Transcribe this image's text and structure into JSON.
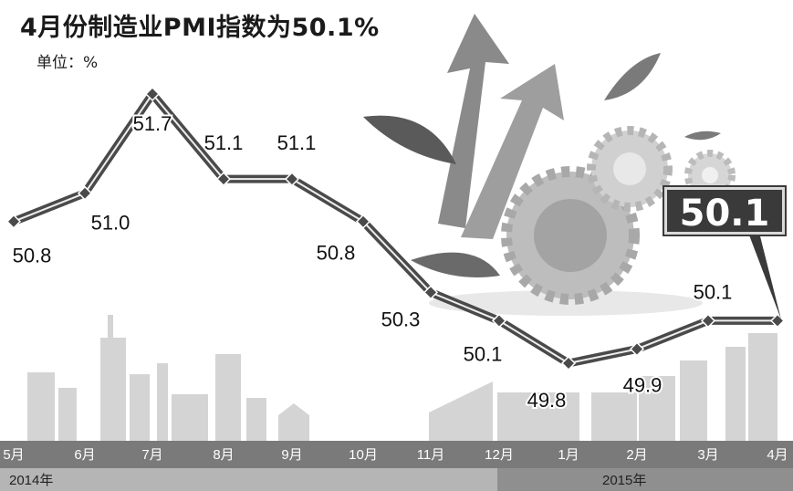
{
  "title": "4月份制造业PMI指数为50.1%",
  "unit_label": "单位：%",
  "callout_value": "50.1",
  "chart_data": {
    "type": "line",
    "title": "4月份制造业PMI指数为50.1%",
    "unit": "%",
    "categories": [
      "5月",
      "6月",
      "7月",
      "8月",
      "9月",
      "10月",
      "11月",
      "12月",
      "1月",
      "2月",
      "3月",
      "4月"
    ],
    "values": [
      50.8,
      51.0,
      51.7,
      51.1,
      51.1,
      50.8,
      50.3,
      50.1,
      49.8,
      49.9,
      50.1,
      50.1
    ],
    "value_labels": [
      "50.8",
      "51.0",
      "51.7",
      "51.1",
      "51.1",
      "50.8",
      "50.3",
      "50.1",
      "49.8",
      "49.9",
      "50.1",
      ""
    ],
    "year_labels": [
      {
        "label": "2014年",
        "start_index": 0,
        "end_index": 7
      },
      {
        "label": "2015年",
        "start_index": 8,
        "end_index": 11
      }
    ],
    "ylim": [
      49.5,
      52.0
    ],
    "grid": false,
    "legend": "none"
  },
  "colors": {
    "line": "#4a4a4a",
    "line_highlight": "#eeeeee",
    "axis_band": "#7a7a7a",
    "year_band_2014": "#b5b5b5",
    "year_band_2015": "#8f8f8f",
    "callout_bg": "#3a3a3a",
    "skyline": "#d4d4d4",
    "decor": "#8a8a8a"
  },
  "decor_icons": [
    "arrow-icon",
    "gear-icon",
    "leaf-icon",
    "city-skyline"
  ]
}
